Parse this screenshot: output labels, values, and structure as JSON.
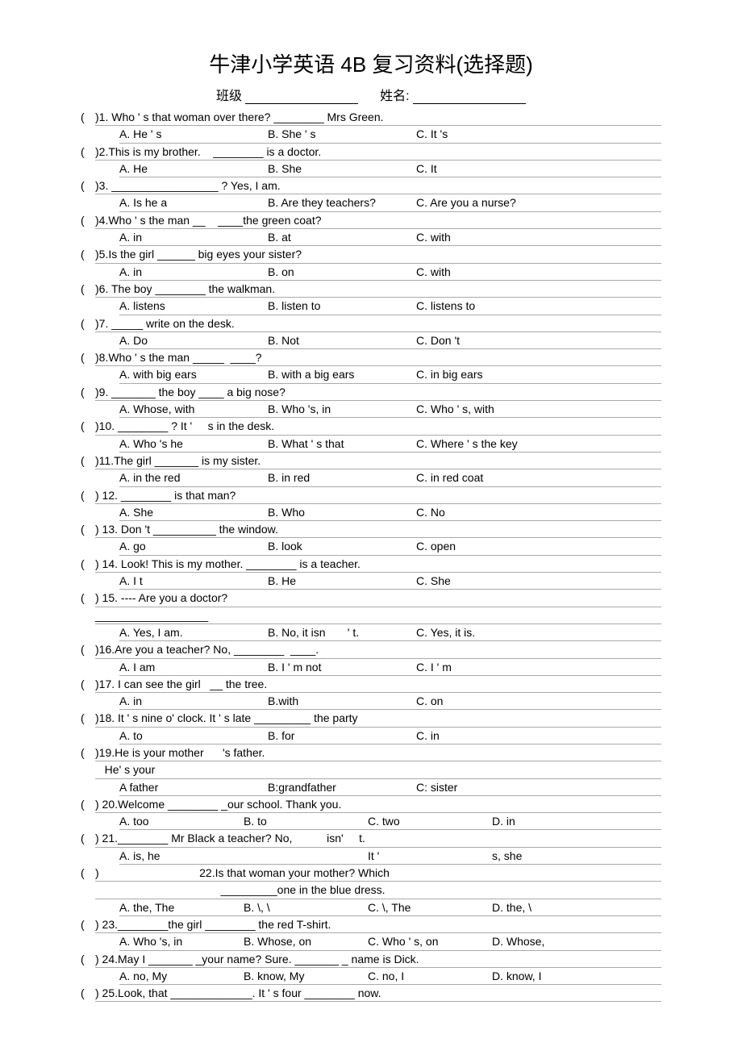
{
  "title": "牛津小学英语 4B 复习资料(选择题)",
  "class_label": "班级",
  "name_label": "姓名:",
  "questions": [
    {
      "n": "1",
      "stem": ")1. Who ' s that woman over there? ________ Mrs Green.",
      "opts": [
        "A. He ' s",
        "B. She ' s",
        "C. It 's"
      ]
    },
    {
      "n": "2",
      "stem": ")2.This is my brother.    ________ is a doctor.",
      "opts": [
        "A. He",
        "B. She",
        "C. It"
      ]
    },
    {
      "n": "3",
      "stem": ")3. _________________ ? Yes, I am.",
      "opts": [
        "A. Is he a",
        "B. Are they teachers?",
        "C. Are you a nurse?"
      ]
    },
    {
      "n": "4",
      "stem": ")4.Who ' s the man __    ____the green coat?",
      "opts": [
        "A. in",
        "B. at",
        "C. with"
      ]
    },
    {
      "n": "5",
      "stem": ")5.Is the girl ______ big eyes your sister?",
      "opts": [
        "A. in",
        "B. on",
        "C. with"
      ]
    },
    {
      "n": "6",
      "stem": ")6. The boy ________ the walkman.",
      "opts": [
        "A. listens",
        "B. listen to",
        "C. listens to"
      ]
    },
    {
      "n": "7",
      "stem": ")7. _____ write on the desk.",
      "opts": [
        "A. Do",
        "B. Not",
        "C. Don 't"
      ]
    },
    {
      "n": "8",
      "stem": ")8.Who ' s the man _____  ____?",
      "opts": [
        "A. with big ears",
        "B. with a big ears",
        "C. in big ears"
      ]
    },
    {
      "n": "9",
      "stem": ")9. _______ the boy ____ a big nose?",
      "opts": [
        "A. Whose, with",
        "B. Who 's, in",
        "C. Who ' s, with"
      ]
    },
    {
      "n": "10",
      "stem": ")10. ________ ? It '     s in the desk.",
      "opts": [
        "A. Who 's he",
        "B. What ' s that",
        "C. Where ' s the key"
      ]
    },
    {
      "n": "11",
      "stem": ")11.The girl _______ is my sister.",
      "opts": [
        "A. in the red",
        "B. in red",
        "C. in red coat"
      ]
    },
    {
      "n": "12",
      "stem": ") 12. ________ is that man?",
      "opts": [
        "A. She",
        "B. Who",
        "C. No"
      ]
    },
    {
      "n": "13",
      "stem": ") 13. Don 't __________ the window.",
      "opts": [
        "A. go",
        "B. look",
        "C. open"
      ]
    },
    {
      "n": "14",
      "stem": ") 14. Look! This is my mother. ________ is a teacher.",
      "opts": [
        "A. I t",
        "B. He",
        "C. She"
      ]
    },
    {
      "n": "15",
      "stem": ") 15. ---- Are you a doctor?\n__________________",
      "opts": [
        "A. Yes, I am.",
        "B. No, it isn       ' t.",
        "C. Yes, it is."
      ]
    },
    {
      "n": "16",
      "stem": ")16.Are you a teacher? No, ________  ____.",
      "opts": [
        "A. I am",
        "B. I ' m not",
        "C. I ' m"
      ]
    },
    {
      "n": "17",
      "stem": ")17. I can see the girl   __ the tree.",
      "opts": [
        "A. in",
        "B.with",
        "C. on"
      ]
    },
    {
      "n": "18",
      "stem": ")18. It ' s nine o' clock. It ' s late _________ the party",
      "opts": [
        "A. to",
        "B. for",
        "C. in"
      ]
    },
    {
      "n": "19",
      "stem": ")19.He is your mother      's father.\n   He' s your",
      "opts": [
        "A father",
        "B:grandfather",
        "C: sister"
      ]
    },
    {
      "n": "20",
      "stem": ") 20.Welcome ________ _our school. Thank you.",
      "opts": [
        "A. too",
        "B. to",
        "C. two",
        "D. in"
      ]
    },
    {
      "n": "21",
      "stem": ") 21.________ Mr Black a teacher? No,           isn'     t.",
      "opts": [
        "A. is, he",
        "",
        "It '",
        "s, she"
      ]
    },
    {
      "n": "22",
      "stem": ")                                22.Is that woman your mother? Which\n                                        _________one in the blue dress.",
      "opts": [
        "A. the, The",
        "B. \\, \\",
        "C. \\, The",
        "D. the, \\"
      ]
    },
    {
      "n": "23",
      "stem": ") 23.________the girl ________ the red T-shirt.",
      "opts": [
        "A. Who 's, in",
        "B. Whose, on",
        "C. Who ' s, on",
        "D. Whose,"
      ]
    },
    {
      "n": "24",
      "stem": ") 24.May I _______ _your name? Sure. _______ _ name is Dick.",
      "opts": [
        "A. no, My",
        "B. know, My",
        "C. no, I",
        "D. know, I"
      ]
    },
    {
      "n": "25",
      "stem": ") 25.Look, that _____________. It ' s four ________ now.",
      "opts": []
    }
  ]
}
